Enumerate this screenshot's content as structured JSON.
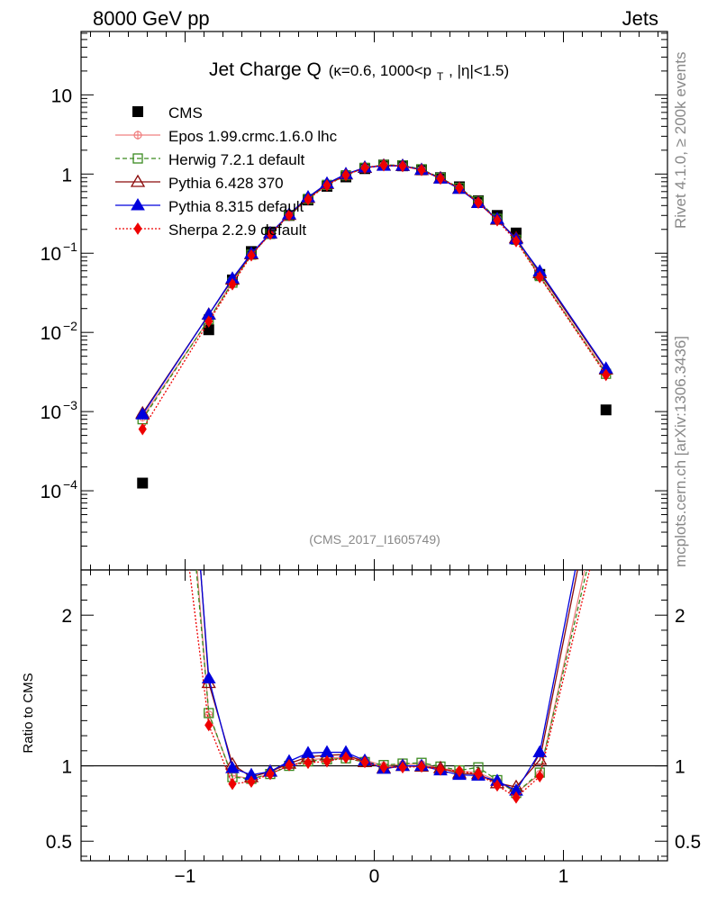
{
  "header": {
    "left_label": "8000 GeV pp",
    "right_label": "Jets",
    "side_label_top": "Rivet 4.1.0, ≥ 200k events",
    "side_label_bottom": "mcplots.cern.ch [arXiv:1306.3436]"
  },
  "chart_data": {
    "type": "line",
    "title": "Jet Charge Q",
    "title_sub": "(κ=0.6, 1000<p",
    "title_sub_T": "T",
    "title_sub_end": ", |η|<1.5)",
    "watermark": "(CMS_2017_I1605749)",
    "xlabel": "",
    "ylabel_main": "",
    "ylabel_ratio": "Ratio to CMS",
    "xlim": [
      -1.55,
      1.55
    ],
    "ylim_main_log10": [
      -5,
      1.8
    ],
    "ylim_ratio": [
      0.37,
      2.3
    ],
    "x_ticks": [
      {
        "value": -1,
        "label": "−1"
      },
      {
        "value": 0,
        "label": "0"
      },
      {
        "value": 1,
        "label": "1"
      }
    ],
    "y_ticks_main": [
      {
        "exp": 1,
        "label": "10",
        "sup": ""
      },
      {
        "exp": 0,
        "label": "1",
        "sup": ""
      },
      {
        "exp": -1,
        "label": "10",
        "sup": "−1"
      },
      {
        "exp": -2,
        "label": "10",
        "sup": "−2"
      },
      {
        "exp": -3,
        "label": "10",
        "sup": "−3"
      },
      {
        "exp": -4,
        "label": "10",
        "sup": "−4"
      }
    ],
    "y_ticks_ratio": [
      {
        "value": 2,
        "label": "2"
      },
      {
        "value": 1,
        "label": "1"
      },
      {
        "value": 0.5,
        "label": "0.5"
      }
    ],
    "x": [
      -1.225,
      -0.875,
      -0.75,
      -0.65,
      -0.55,
      -0.45,
      -0.35,
      -0.25,
      -0.15,
      -0.05,
      0.05,
      0.15,
      0.25,
      0.35,
      0.45,
      0.55,
      0.65,
      0.75,
      0.875,
      1.225
    ],
    "data": {
      "name": "CMS",
      "values": [
        0.000125,
        0.0108,
        0.046,
        0.105,
        0.185,
        0.3,
        0.47,
        0.7,
        0.92,
        1.17,
        1.3,
        1.27,
        1.13,
        0.9,
        0.69,
        0.46,
        0.3,
        0.18,
        0.054,
        0.00105
      ]
    },
    "series": [
      {
        "name": "Epos 1.99.crmc.1.6.0 lhc",
        "color": "#f08080",
        "dash": "",
        "marker": "cross",
        "values": [
          0.00085,
          0.0145,
          0.043,
          0.096,
          0.175,
          0.302,
          0.49,
          0.735,
          0.975,
          1.21,
          1.3,
          1.28,
          1.14,
          0.885,
          0.665,
          0.44,
          0.27,
          0.148,
          0.051,
          0.0031
        ]
      },
      {
        "name": "Herwig 7.2.1 default",
        "color": "#3a8a1f",
        "dash": "5,3",
        "marker": "square",
        "values": [
          0.0008,
          0.0146,
          0.0425,
          0.096,
          0.175,
          0.3,
          0.485,
          0.73,
          0.965,
          1.2,
          1.305,
          1.29,
          1.15,
          0.895,
          0.67,
          0.455,
          0.272,
          0.148,
          0.0515,
          0.003
        ]
      },
      {
        "name": "Pythia 6.428 370",
        "color": "#8b0a0a",
        "dash": "",
        "marker": "triangle-open",
        "values": [
          0.00095,
          0.0168,
          0.0465,
          0.097,
          0.178,
          0.305,
          0.5,
          0.75,
          0.99,
          1.2,
          1.28,
          1.27,
          1.125,
          0.885,
          0.655,
          0.435,
          0.265,
          0.155,
          0.056,
          0.0034
        ]
      },
      {
        "name": "Pythia 8.315 default",
        "color": "#0000dd",
        "dash": "",
        "marker": "triangle",
        "values": [
          0.00092,
          0.0168,
          0.048,
          0.099,
          0.178,
          0.31,
          0.51,
          0.76,
          1.0,
          1.21,
          1.27,
          1.27,
          1.13,
          0.875,
          0.65,
          0.43,
          0.27,
          0.15,
          0.059,
          0.0035
        ]
      },
      {
        "name": "Sherpa 2.2.9 default",
        "color": "#ee0000",
        "dash": "2,2",
        "marker": "diamond",
        "values": [
          0.0006,
          0.0137,
          0.0405,
          0.094,
          0.175,
          0.302,
          0.48,
          0.72,
          0.97,
          1.2,
          1.29,
          1.26,
          1.125,
          0.875,
          0.665,
          0.435,
          0.26,
          0.142,
          0.05,
          0.0029
        ]
      }
    ],
    "ratios": [
      [
        6.8,
        1.34,
        0.935,
        0.914,
        0.946,
        1.0,
        1.04,
        1.05,
        1.06,
        1.04,
        1.0,
        1.01,
        1.01,
        0.985,
        0.965,
        0.955,
        0.9,
        0.82,
        0.945,
        2.95
      ],
      [
        6.4,
        1.35,
        0.925,
        0.914,
        0.946,
        1.0,
        1.03,
        1.043,
        1.05,
        1.025,
        1.005,
        1.015,
        1.02,
        0.995,
        0.97,
        0.99,
        0.905,
        0.82,
        0.955,
        2.85
      ],
      [
        7.6,
        1.55,
        1.01,
        0.925,
        0.962,
        1.015,
        1.06,
        1.07,
        1.075,
        1.025,
        0.985,
        1.0,
        0.995,
        0.985,
        0.95,
        0.945,
        0.885,
        0.86,
        1.04,
        3.25
      ],
      [
        7.4,
        1.58,
        0.985,
        0.94,
        0.962,
        1.03,
        1.085,
        1.09,
        1.09,
        1.035,
        0.98,
        1.0,
        1.0,
        0.97,
        0.94,
        0.935,
        0.9,
        0.835,
        1.09,
        3.35
      ],
      [
        4.8,
        1.27,
        0.88,
        0.895,
        0.946,
        1.005,
        1.02,
        1.03,
        1.055,
        1.025,
        0.99,
        0.99,
        0.995,
        0.975,
        0.965,
        0.945,
        0.87,
        0.79,
        0.93,
        2.75
      ]
    ]
  }
}
